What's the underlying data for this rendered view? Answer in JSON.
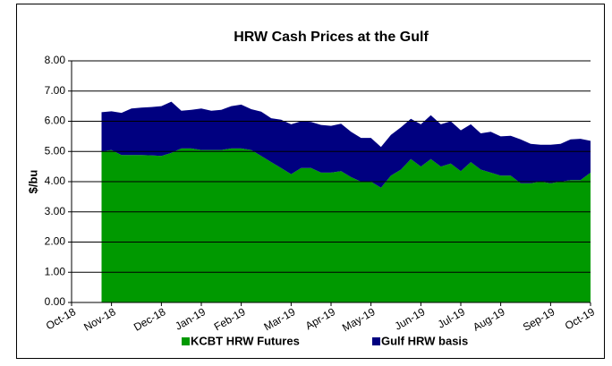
{
  "chart_data": {
    "type": "stacked-area",
    "title": "HRW Cash Prices at the Gulf",
    "y_label": "$/bu",
    "categories": [
      "Oct-18",
      null,
      null,
      null,
      "Nov-18",
      null,
      null,
      null,
      null,
      "Dec-18",
      null,
      null,
      null,
      "Jan-19",
      null,
      null,
      null,
      "Feb-19",
      null,
      null,
      null,
      null,
      "Mar-19",
      null,
      null,
      null,
      "Apr-19",
      null,
      null,
      null,
      "May-19",
      null,
      null,
      null,
      null,
      "Jun-19",
      null,
      null,
      null,
      "Jul-19",
      null,
      null,
      null,
      "Aug-19",
      null,
      null,
      null,
      null,
      "Sep-19",
      null,
      null,
      null,
      "Oct-19"
    ],
    "series": [
      {
        "name": "KCBT HRW Futures",
        "color": "#009900",
        "values": [
          null,
          null,
          null,
          5.0,
          5.05,
          4.88,
          4.88,
          4.88,
          4.87,
          4.85,
          4.95,
          5.1,
          5.1,
          5.05,
          5.05,
          5.05,
          5.1,
          5.1,
          5.05,
          4.85,
          4.65,
          4.45,
          4.25,
          4.45,
          4.45,
          4.3,
          4.3,
          4.35,
          4.15,
          4.0,
          4.0,
          3.8,
          4.2,
          4.4,
          4.75,
          4.5,
          4.75,
          4.5,
          4.6,
          4.35,
          4.65,
          4.4,
          4.3,
          4.2,
          4.2,
          3.95,
          3.95,
          4.0,
          3.95,
          4.0,
          4.05,
          4.05,
          4.3
        ]
      },
      {
        "name": "Gulf HRW basis",
        "color": "#000080",
        "values": [
          null,
          null,
          null,
          1.3,
          1.28,
          1.4,
          1.54,
          1.57,
          1.6,
          1.65,
          1.7,
          1.25,
          1.28,
          1.37,
          1.3,
          1.33,
          1.4,
          1.45,
          1.35,
          1.47,
          1.45,
          1.6,
          1.65,
          1.55,
          1.53,
          1.58,
          1.55,
          1.57,
          1.5,
          1.45,
          1.45,
          1.35,
          1.35,
          1.4,
          1.33,
          1.4,
          1.45,
          1.4,
          1.4,
          1.35,
          1.25,
          1.2,
          1.35,
          1.3,
          1.32,
          1.45,
          1.3,
          1.22,
          1.27,
          1.25,
          1.35,
          1.37,
          1.05
        ]
      }
    ],
    "ylim": [
      0,
      8
    ],
    "yticks": [
      {
        "value": 0,
        "label": "0.00"
      },
      {
        "value": 1,
        "label": "1.00"
      },
      {
        "value": 2,
        "label": "2.00"
      },
      {
        "value": 3,
        "label": "3.00"
      },
      {
        "value": 4,
        "label": "4.00"
      },
      {
        "value": 5,
        "label": "5.00"
      },
      {
        "value": 6,
        "label": "6.00"
      },
      {
        "value": 7,
        "label": "7.00"
      },
      {
        "value": 8,
        "label": "8.00"
      }
    ],
    "grid": true,
    "legend": "bottom"
  }
}
